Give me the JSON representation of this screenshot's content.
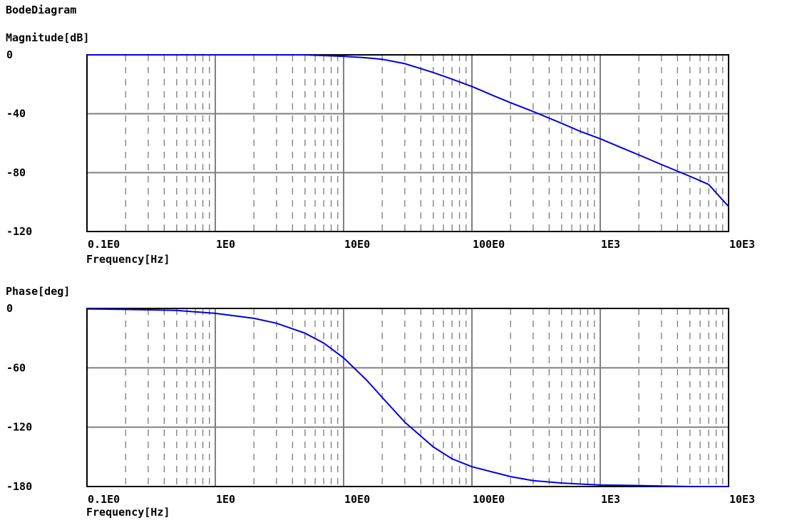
{
  "title": "BodeDiagram",
  "colors": {
    "curve": "#0000e0",
    "major_grid": "#808080",
    "minor_grid": "#7a7a7a",
    "frame": "#000000",
    "background": "#ffffff"
  },
  "chart_data": [
    {
      "type": "line",
      "ylabel": "Magnitude[dB]",
      "xlabel": "Frequency[Hz]",
      "x_scale": "log",
      "xlim": [
        0.1,
        10000
      ],
      "ylim": [
        -120,
        0
      ],
      "yticks": [
        0,
        -40,
        -80,
        -120
      ],
      "ytick_labels": [
        "0",
        "-40",
        "-80",
        "-120"
      ],
      "xticks": [
        0.1,
        1,
        10,
        100,
        1000,
        10000
      ],
      "xtick_labels": [
        "0.1E0",
        "1E0",
        "10E0",
        "100E0",
        "1E3",
        "10E3"
      ],
      "grid": true,
      "series": [
        {
          "x": [
            0.1,
            1,
            5,
            10,
            15,
            20,
            30,
            50,
            70,
            100,
            150,
            200,
            300,
            500,
            700,
            1000,
            1500,
            2000,
            3000,
            5000,
            7000,
            10000
          ],
          "y": [
            0,
            0,
            0,
            -1,
            -2,
            -3,
            -6,
            -12,
            -16.5,
            -21.5,
            -28,
            -32.5,
            -38.5,
            -46.5,
            -52,
            -57,
            -63.5,
            -68,
            -74.5,
            -82.5,
            -88,
            -103
          ]
        }
      ]
    },
    {
      "type": "line",
      "ylabel": "Phase[deg]",
      "xlabel": "Frequency[Hz]",
      "x_scale": "log",
      "xlim": [
        0.1,
        10000
      ],
      "ylim": [
        -180,
        0
      ],
      "yticks": [
        0,
        -60,
        -120,
        -180
      ],
      "ytick_labels": [
        "0",
        "-60",
        "-120",
        "-180"
      ],
      "xticks": [
        0.1,
        1,
        10,
        100,
        1000,
        10000
      ],
      "xtick_labels": [
        "0.1E0",
        "1E0",
        "10E0",
        "100E0",
        "1E3",
        "10E3"
      ],
      "grid": true,
      "series": [
        {
          "x": [
            0.1,
            0.2,
            0.5,
            1,
            2,
            3,
            5,
            7,
            10,
            15,
            20,
            30,
            50,
            70,
            100,
            200,
            300,
            500,
            700,
            1000,
            2000,
            3000,
            5000,
            10000
          ],
          "y": [
            -0.5,
            -1,
            -2,
            -5,
            -10,
            -15,
            -25,
            -35,
            -50,
            -72,
            -90,
            -115,
            -140,
            -152,
            -160,
            -170,
            -174,
            -176.5,
            -177.5,
            -178.5,
            -179,
            -179.5,
            -180,
            -180
          ]
        }
      ]
    }
  ]
}
